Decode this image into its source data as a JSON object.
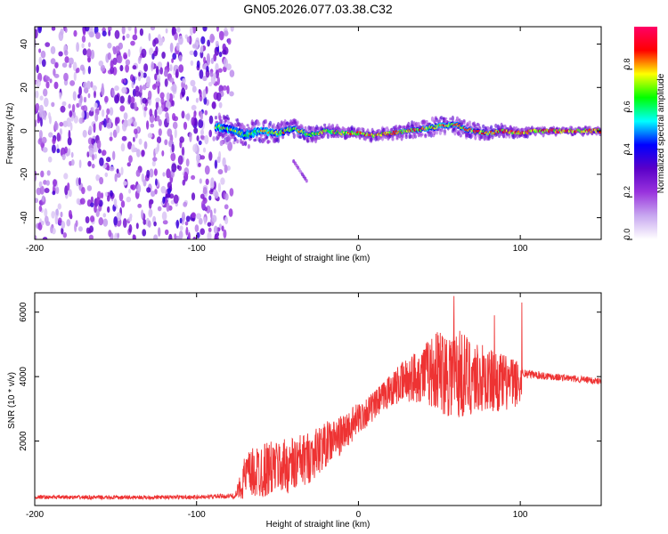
{
  "figure": {
    "title": "GN05.2026.077.03.38.C32"
  },
  "chart_data": [
    {
      "type": "heatmap",
      "title": "GN05.2026.077.03.38.C32",
      "xlabel": "Height of straight line (km)",
      "ylabel": "Frequency (Hz)",
      "xlim": [
        -200,
        150
      ],
      "ylim": [
        -50,
        48
      ],
      "xticks": [
        -200,
        -100,
        0,
        100
      ],
      "yticks": [
        -40,
        -20,
        0,
        20,
        40
      ],
      "noise_region_x": [
        -200,
        -78
      ],
      "signal_track": {
        "x": [
          -88,
          -80,
          -70,
          -60,
          -50,
          -40,
          -30,
          -20,
          -10,
          0,
          10,
          20,
          30,
          40,
          50,
          60,
          70,
          80,
          90,
          100,
          110,
          120,
          130,
          140,
          150
        ],
        "freq": [
          2,
          1,
          -2,
          0,
          -1,
          1,
          -2,
          0,
          -1,
          -1,
          -2,
          -1,
          0,
          1,
          2,
          3,
          0,
          -1,
          0,
          -1,
          0,
          0,
          0,
          0,
          0
        ],
        "spread": [
          5,
          5,
          5,
          4.5,
          4,
          3.5,
          3,
          2.5,
          2.2,
          2,
          2,
          2.2,
          2.5,
          3,
          3.5,
          3.5,
          3,
          2.5,
          2,
          1.5,
          1.2,
          1,
          1,
          1,
          1
        ]
      },
      "secondary_trace": {
        "x": [
          -40,
          -32
        ],
        "freq": [
          -14,
          -23
        ]
      },
      "colorbar": {
        "label": "Normalized spectral amplitude",
        "range": [
          0,
          1
        ],
        "ticks": [
          "0.0",
          "0.2",
          "0.4",
          "0.6",
          "0.8"
        ],
        "colors": [
          "#ffffff",
          "#c8a8f0",
          "#9933dd",
          "#5a00c8",
          "#0000ff",
          "#00ffff",
          "#00ff00",
          "#ffff00",
          "#ff0000",
          "#ff0066"
        ]
      }
    },
    {
      "type": "line",
      "xlabel": "Height of straight line (km)",
      "ylabel": "SNR (10 * v/v)",
      "xlim": [
        -200,
        150
      ],
      "ylim": [
        0,
        6600
      ],
      "xticks": [
        -200,
        -100,
        0,
        100
      ],
      "yticks": [
        2000,
        4000,
        6000
      ],
      "series": [
        {
          "name": "SNR",
          "color": "#ee3333",
          "envelope": {
            "x": [
              -200,
              -150,
              -100,
              -76,
              -70,
              -60,
              -50,
              -40,
              -30,
              -20,
              -10,
              0,
              10,
              20,
              30,
              40,
              50,
              60,
              70,
              80,
              90,
              100,
              102,
              110,
              120,
              130,
              140,
              150
            ],
            "mean": [
              260,
              250,
              260,
              300,
              900,
              1100,
              1200,
              1250,
              1500,
              1900,
              2200,
              2700,
              3100,
              3600,
              3900,
              4100,
              4200,
              4100,
              4000,
              3900,
              3800,
              3800,
              4100,
              4050,
              4000,
              3950,
              3900,
              3850
            ],
            "amp": [
              60,
              60,
              60,
              80,
              700,
              900,
              800,
              900,
              800,
              700,
              600,
              500,
              450,
              500,
              700,
              900,
              1300,
              1500,
              1200,
              1000,
              900,
              700,
              150,
              130,
              120,
              110,
              110,
              110
            ]
          },
          "peaks": [
            {
              "x": 59,
              "y": 6500
            },
            {
              "x": 101,
              "y": 6300
            },
            {
              "x": 84,
              "y": 5900
            }
          ]
        }
      ]
    }
  ]
}
